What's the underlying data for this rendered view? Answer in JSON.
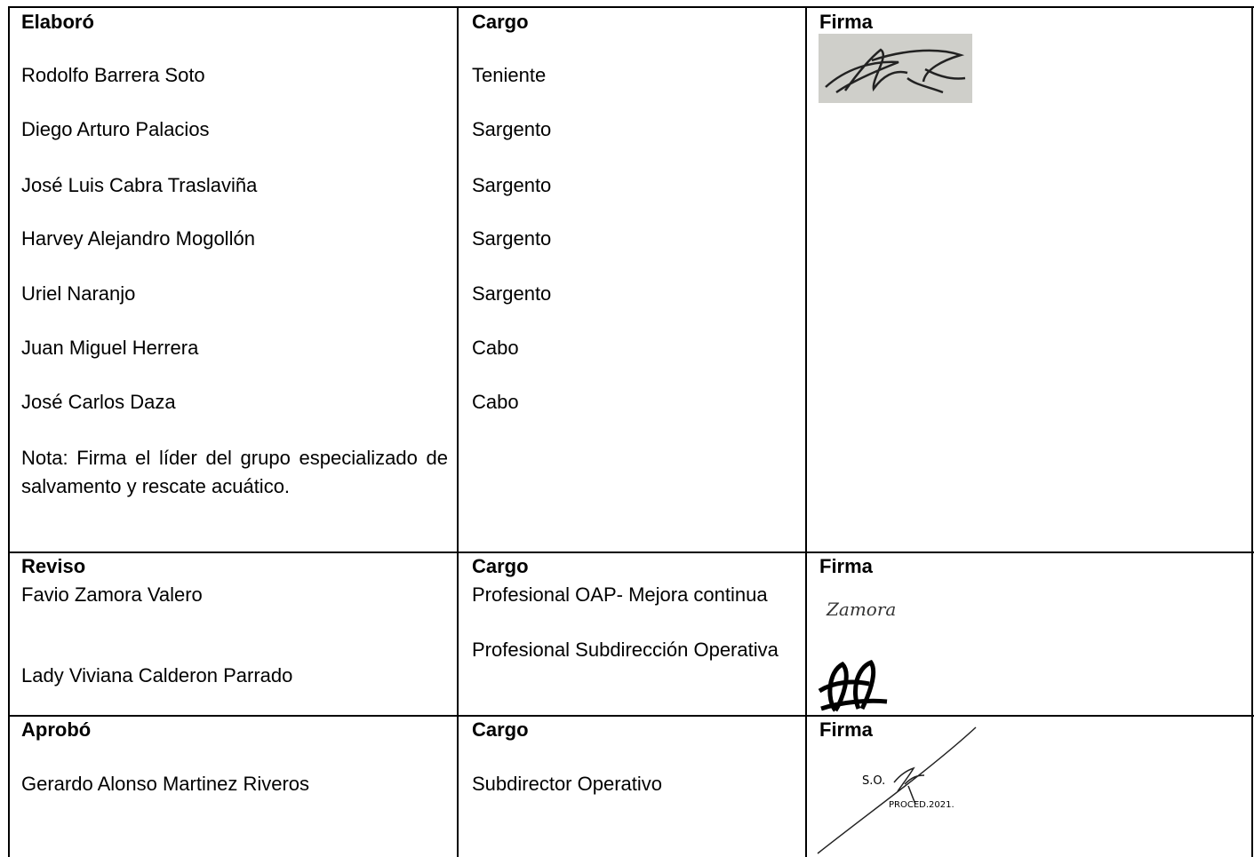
{
  "sections": [
    {
      "header": [
        "Elaboró",
        "Cargo",
        "Firma"
      ],
      "rows": [
        [
          "Rodolfo Barrera Soto",
          "Teniente"
        ],
        [
          "Diego Arturo Palacios",
          "Sargento"
        ],
        [
          "José Luis Cabra Traslaviña",
          "Sargento"
        ],
        [
          "Harvey Alejandro Mogollón",
          "Sargento"
        ],
        [
          "Uriel Naranjo",
          "Sargento"
        ],
        [
          "Juan Miguel Herrera",
          "Cabo"
        ],
        [
          "José Carlos Daza",
          "Cabo"
        ]
      ],
      "note": "Nota: Firma el líder del grupo especializado de salvamento y rescate acuático."
    },
    {
      "header": [
        "Reviso",
        "Cargo",
        "Firma"
      ],
      "rows": [
        [
          "Favio Zamora Valero",
          "Profesional OAP- Mejora continua"
        ],
        [
          "Lady Viviana Calderon Parrado",
          "Profesional Subdirección Operativa"
        ]
      ],
      "signature_text": [
        "Zamora"
      ]
    },
    {
      "header": [
        "Aprobó",
        "Cargo",
        "Firma"
      ],
      "rows": [
        [
          "Gerardo Alonso Martinez Riveros",
          "Subdirector Operativo"
        ]
      ],
      "signature_text": [
        "S.O.",
        "PROCED.2021."
      ]
    }
  ]
}
